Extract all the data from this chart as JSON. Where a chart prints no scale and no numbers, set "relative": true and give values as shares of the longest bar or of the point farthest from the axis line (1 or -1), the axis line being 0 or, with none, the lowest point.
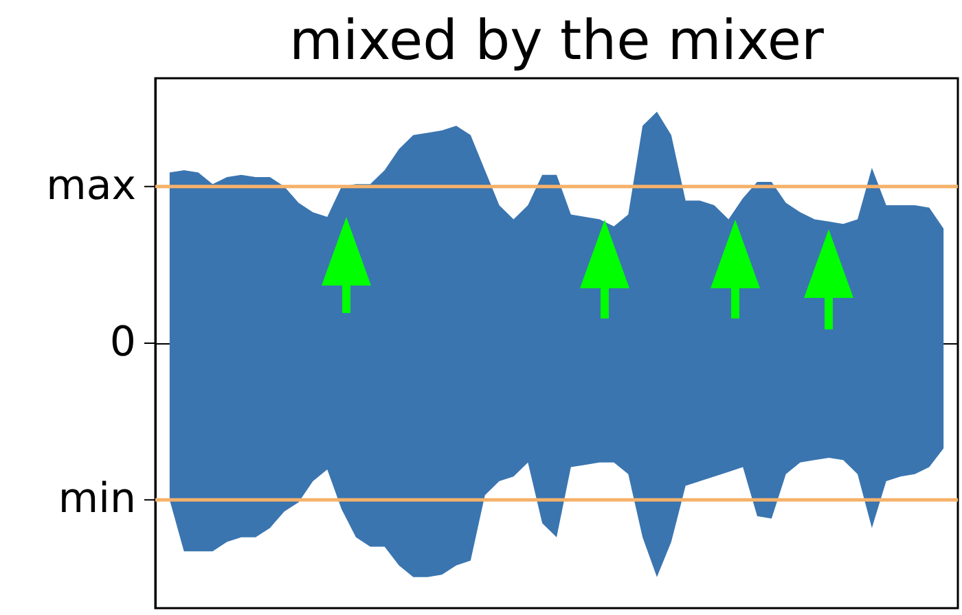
{
  "chart_data": {
    "type": "area",
    "title": "mixed by the mixer",
    "relative": true,
    "categories": [
      null,
      null,
      null,
      null,
      null,
      null,
      null,
      null,
      null,
      null,
      null,
      null,
      null,
      null,
      null,
      null,
      null,
      null,
      null,
      null,
      null,
      null,
      null,
      null,
      null,
      null,
      null,
      null,
      null,
      null,
      null,
      null,
      null,
      null,
      null,
      null,
      null,
      null,
      null,
      null,
      null,
      null,
      null,
      null,
      null,
      null,
      null,
      null,
      null,
      null,
      null,
      null,
      null,
      null,
      null
    ],
    "series": [
      {
        "color": "#3a75b0",
        "values": [
          0.73,
          0.74,
          0.73,
          0.68,
          0.71,
          0.72,
          0.71,
          0.71,
          0.67,
          0.6,
          0.56,
          0.54,
          0.67,
          0.68,
          0.68,
          0.74,
          0.83,
          0.89,
          0.9,
          0.91,
          0.93,
          0.89,
          0.74,
          0.59,
          0.53,
          0.59,
          0.72,
          0.72,
          0.55,
          0.54,
          0.53,
          0.5,
          0.55,
          0.93,
          0.99,
          0.89,
          0.61,
          0.61,
          0.59,
          0.53,
          0.62,
          0.69,
          0.69,
          0.6,
          0.56,
          0.53,
          0.52,
          0.51,
          0.53,
          0.75,
          0.59,
          0.59,
          0.59,
          0.58,
          0.49
        ]
      },
      {
        "color": "#3a75b0",
        "values": [
          -0.67,
          -0.89,
          -0.89,
          -0.89,
          -0.85,
          -0.83,
          -0.83,
          -0.79,
          -0.72,
          -0.68,
          -0.59,
          -0.54,
          -0.71,
          -0.83,
          -0.87,
          -0.87,
          -0.95,
          -1,
          -1,
          -0.99,
          -0.95,
          -0.93,
          -0.65,
          -0.59,
          -0.57,
          -0.51,
          -0.77,
          -0.83,
          -0.53,
          -0.52,
          -0.51,
          -0.51,
          -0.56,
          -0.83,
          -1,
          -0.85,
          -0.61,
          -0.59,
          -0.57,
          -0.55,
          -0.53,
          -0.74,
          -0.75,
          -0.56,
          -0.51,
          -0.5,
          -0.49,
          -0.5,
          -0.56,
          -0.79,
          -0.59,
          -0.57,
          -0.56,
          -0.53,
          -0.45
        ]
      }
    ],
    "ref_lines": [
      {
        "axis": "y",
        "value": 0.67,
        "label": "max",
        "color": "#f5b26b"
      },
      {
        "axis": "y",
        "value": -0.67,
        "label": "min",
        "color": "#f5b26b"
      }
    ],
    "annotations": [
      "0"
    ],
    "grid": false
  }
}
